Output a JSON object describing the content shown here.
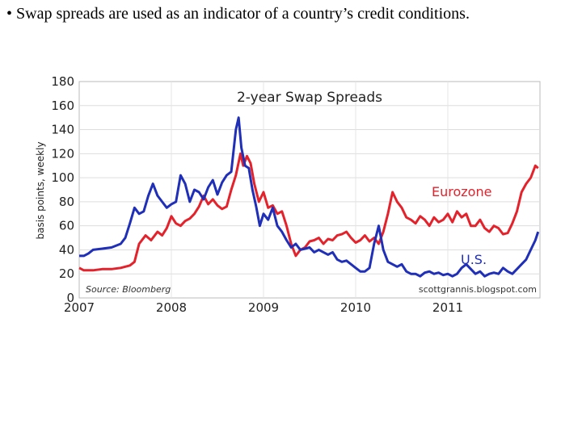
{
  "slide": {
    "bullet_text": "• Swap spreads  are used as an indicator of a country’s credit conditions."
  },
  "chart_data": {
    "type": "line",
    "title": "2-year Swap Spreads",
    "ylabel": "basis points, weekly",
    "xlabel": "",
    "source": "Source: Bloomberg",
    "credit": "scottgrannis.blogspot.com",
    "ylim": [
      0,
      180
    ],
    "xlim": [
      2007.0,
      2012.0
    ],
    "yticks": [
      0,
      20,
      40,
      60,
      80,
      100,
      120,
      140,
      160,
      180
    ],
    "xticks": [
      2007,
      2008,
      2009,
      2010,
      2011
    ],
    "grid": true,
    "series": [
      {
        "name": "Eurozone",
        "color": "#e4222b",
        "x": [
          2007.0,
          2007.05,
          2007.15,
          2007.25,
          2007.35,
          2007.45,
          2007.55,
          2007.6,
          2007.65,
          2007.72,
          2007.78,
          2007.85,
          2007.9,
          2007.95,
          2008.0,
          2008.05,
          2008.1,
          2008.15,
          2008.2,
          2008.25,
          2008.3,
          2008.35,
          2008.4,
          2008.45,
          2008.5,
          2008.55,
          2008.6,
          2008.65,
          2008.7,
          2008.75,
          2008.78,
          2008.82,
          2008.86,
          2008.9,
          2008.95,
          2009.0,
          2009.05,
          2009.1,
          2009.15,
          2009.2,
          2009.25,
          2009.3,
          2009.35,
          2009.4,
          2009.45,
          2009.5,
          2009.55,
          2009.6,
          2009.65,
          2009.7,
          2009.75,
          2009.8,
          2009.85,
          2009.9,
          2009.95,
          2010.0,
          2010.05,
          2010.1,
          2010.15,
          2010.2,
          2010.25,
          2010.3,
          2010.35,
          2010.4,
          2010.45,
          2010.5,
          2010.55,
          2010.6,
          2010.65,
          2010.7,
          2010.75,
          2010.8,
          2010.85,
          2010.9,
          2010.95,
          2011.0,
          2011.05,
          2011.1,
          2011.15,
          2011.2,
          2011.25,
          2011.3,
          2011.35,
          2011.4,
          2011.45,
          2011.5,
          2011.55,
          2011.6,
          2011.65,
          2011.7,
          2011.75,
          2011.8,
          2011.85,
          2011.9,
          2011.95,
          2011.98
        ],
        "values": [
          25,
          23,
          23,
          24,
          24,
          25,
          27,
          30,
          45,
          52,
          48,
          55,
          52,
          58,
          68,
          62,
          60,
          64,
          66,
          70,
          76,
          85,
          78,
          82,
          77,
          74,
          76,
          90,
          102,
          120,
          110,
          118,
          112,
          95,
          80,
          88,
          75,
          77,
          70,
          72,
          60,
          45,
          35,
          40,
          42,
          47,
          48,
          50,
          45,
          49,
          48,
          52,
          53,
          55,
          50,
          46,
          48,
          52,
          47,
          50,
          45,
          55,
          70,
          88,
          80,
          75,
          67,
          65,
          62,
          68,
          65,
          60,
          67,
          63,
          65,
          70,
          63,
          72,
          67,
          70,
          60,
          60,
          65,
          58,
          55,
          60,
          58,
          53,
          54,
          62,
          72,
          88,
          95,
          100,
          110,
          108
        ]
      },
      {
        "name": "U.S.",
        "color": "#1f2fb8",
        "x": [
          2007.0,
          2007.05,
          2007.1,
          2007.15,
          2007.25,
          2007.35,
          2007.45,
          2007.5,
          2007.55,
          2007.6,
          2007.65,
          2007.7,
          2007.75,
          2007.8,
          2007.85,
          2007.9,
          2007.95,
          2008.0,
          2008.05,
          2008.1,
          2008.15,
          2008.2,
          2008.25,
          2008.3,
          2008.35,
          2008.4,
          2008.45,
          2008.5,
          2008.55,
          2008.6,
          2008.65,
          2008.7,
          2008.73,
          2008.76,
          2008.8,
          2008.84,
          2008.88,
          2008.92,
          2008.96,
          2009.0,
          2009.05,
          2009.1,
          2009.15,
          2009.2,
          2009.25,
          2009.3,
          2009.35,
          2009.4,
          2009.45,
          2009.5,
          2009.55,
          2009.6,
          2009.65,
          2009.7,
          2009.75,
          2009.8,
          2009.85,
          2009.9,
          2009.95,
          2010.0,
          2010.05,
          2010.1,
          2010.15,
          2010.2,
          2010.25,
          2010.3,
          2010.35,
          2010.4,
          2010.45,
          2010.5,
          2010.55,
          2010.6,
          2010.65,
          2010.7,
          2010.75,
          2010.8,
          2010.85,
          2010.9,
          2010.95,
          2011.0,
          2011.05,
          2011.1,
          2011.15,
          2011.2,
          2011.25,
          2011.3,
          2011.35,
          2011.4,
          2011.45,
          2011.5,
          2011.55,
          2011.6,
          2011.65,
          2011.7,
          2011.75,
          2011.8,
          2011.85,
          2011.9,
          2011.95,
          2011.98
        ],
        "values": [
          35,
          35,
          37,
          40,
          41,
          42,
          45,
          50,
          62,
          75,
          70,
          72,
          85,
          95,
          85,
          80,
          75,
          78,
          80,
          102,
          95,
          80,
          90,
          88,
          82,
          92,
          98,
          86,
          96,
          102,
          105,
          140,
          150,
          125,
          110,
          108,
          90,
          76,
          60,
          70,
          65,
          75,
          60,
          55,
          48,
          42,
          45,
          40,
          41,
          42,
          38,
          40,
          38,
          36,
          38,
          32,
          30,
          31,
          28,
          25,
          22,
          22,
          25,
          45,
          60,
          40,
          30,
          28,
          26,
          28,
          22,
          20,
          20,
          18,
          21,
          22,
          20,
          21,
          19,
          20,
          18,
          20,
          25,
          28,
          24,
          20,
          22,
          18,
          20,
          21,
          20,
          25,
          22,
          20,
          24,
          28,
          32,
          40,
          48,
          55
        ]
      }
    ],
    "annotations": [
      {
        "text": "Eurozone",
        "series": "Eurozone"
      },
      {
        "text": "U.S.",
        "series": "U.S."
      }
    ]
  }
}
